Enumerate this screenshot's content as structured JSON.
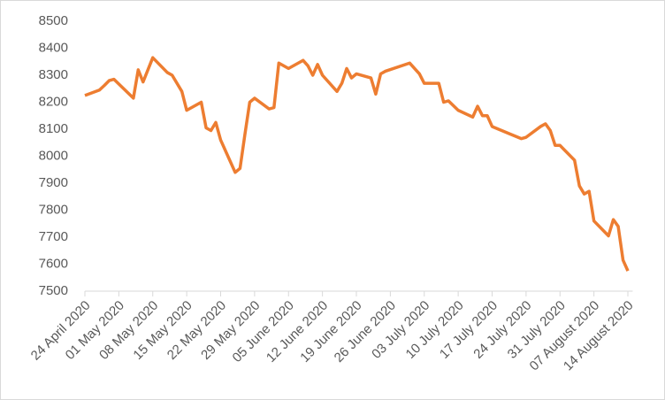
{
  "chart_data": {
    "type": "line",
    "x": [
      "2020-04-24",
      "2020-04-27",
      "2020-04-28",
      "2020-04-29",
      "2020-04-30",
      "2020-05-04",
      "2020-05-05",
      "2020-05-06",
      "2020-05-08",
      "2020-05-11",
      "2020-05-12",
      "2020-05-14",
      "2020-05-15",
      "2020-05-18",
      "2020-05-19",
      "2020-05-20",
      "2020-05-21",
      "2020-05-22",
      "2020-05-25",
      "2020-05-26",
      "2020-05-27",
      "2020-05-28",
      "2020-05-29",
      "2020-06-01",
      "2020-06-02",
      "2020-06-03",
      "2020-06-05",
      "2020-06-08",
      "2020-06-09",
      "2020-06-10",
      "2020-06-11",
      "2020-06-12",
      "2020-06-15",
      "2020-06-16",
      "2020-06-17",
      "2020-06-18",
      "2020-06-19",
      "2020-06-22",
      "2020-06-23",
      "2020-06-24",
      "2020-06-25",
      "2020-06-30",
      "2020-07-02",
      "2020-07-03",
      "2020-07-06",
      "2020-07-07",
      "2020-07-08",
      "2020-07-10",
      "2020-07-13",
      "2020-07-14",
      "2020-07-15",
      "2020-07-16",
      "2020-07-17",
      "2020-07-21",
      "2020-07-23",
      "2020-07-24",
      "2020-07-27",
      "2020-07-28",
      "2020-07-29",
      "2020-07-30",
      "2020-07-31",
      "2020-08-03",
      "2020-08-04",
      "2020-08-05",
      "2020-08-06",
      "2020-08-07",
      "2020-08-10",
      "2020-08-11",
      "2020-08-12",
      "2020-08-13",
      "2020-08-14"
    ],
    "series": [
      {
        "color": "#ed7d31",
        "values": [
          8225,
          8245,
          8262,
          8280,
          8285,
          8215,
          8320,
          8275,
          8365,
          8310,
          8300,
          8240,
          8170,
          8200,
          8105,
          8095,
          8125,
          8060,
          7940,
          7955,
          8080,
          8200,
          8215,
          8175,
          8180,
          8345,
          8325,
          8355,
          8335,
          8300,
          8340,
          8300,
          8240,
          8270,
          8325,
          8290,
          8305,
          8290,
          8230,
          8305,
          8315,
          8345,
          8305,
          8270,
          8270,
          8200,
          8205,
          8170,
          8145,
          8185,
          8150,
          8150,
          8110,
          8080,
          8065,
          8070,
          8110,
          8120,
          8095,
          8040,
          8040,
          7985,
          7890,
          7860,
          7870,
          7760,
          7705,
          7765,
          7740,
          7615,
          7575
        ]
      }
    ],
    "xlim": [
      "2020-04-24",
      "2020-08-15"
    ],
    "xticks": [
      {
        "value": "2020-04-24",
        "label": "24 April 2020"
      },
      {
        "value": "2020-05-01",
        "label": "01 May 2020"
      },
      {
        "value": "2020-05-08",
        "label": "08 May 2020"
      },
      {
        "value": "2020-05-15",
        "label": "15 May 2020"
      },
      {
        "value": "2020-05-22",
        "label": "22 May 2020"
      },
      {
        "value": "2020-05-29",
        "label": "29 May 2020"
      },
      {
        "value": "2020-06-05",
        "label": "05 June 2020"
      },
      {
        "value": "2020-06-12",
        "label": "12 June 2020"
      },
      {
        "value": "2020-06-19",
        "label": "19 June 2020"
      },
      {
        "value": "2020-06-26",
        "label": "26 June 2020"
      },
      {
        "value": "2020-07-03",
        "label": "03 July 2020"
      },
      {
        "value": "2020-07-10",
        "label": "10 July 2020"
      },
      {
        "value": "2020-07-17",
        "label": "17 July 2020"
      },
      {
        "value": "2020-07-24",
        "label": "24 July 2020"
      },
      {
        "value": "2020-07-31",
        "label": "31 July 2020"
      },
      {
        "value": "2020-08-07",
        "label": "07 August 2020"
      },
      {
        "value": "2020-08-14",
        "label": "14 August 2020"
      }
    ],
    "ylim": [
      7500,
      8500
    ],
    "yticks": [
      7500,
      7600,
      7700,
      7800,
      7900,
      8000,
      8100,
      8200,
      8300,
      8400,
      8500
    ]
  }
}
